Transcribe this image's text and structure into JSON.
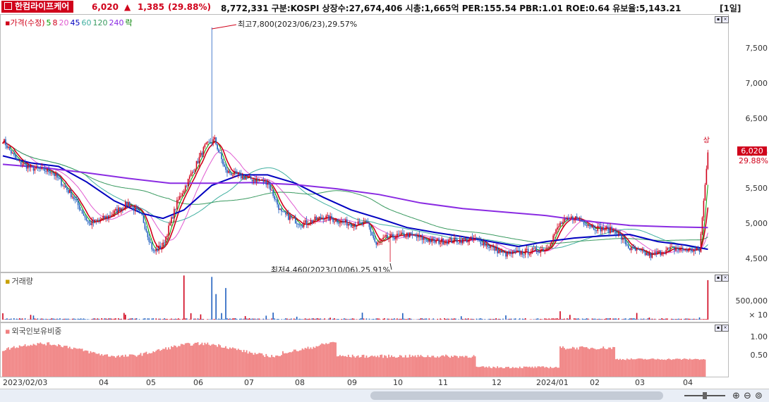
{
  "header": {
    "name": "한컴라이프케어",
    "price": "6,020",
    "arrow": "▲",
    "change": "1,385",
    "pct": "(29.88%)",
    "info": "8,772,331  구분:KOSPI  상장수:27,674,406  시총:1,665억  PER:155.54  PBR:1.01  ROE:0.64  유보율:5,143.21",
    "period": "[1일]"
  },
  "colors": {
    "up": "#d0021b",
    "down": "#1f5fbf",
    "ma5": "#00a000",
    "ma8": "#d0021b",
    "ma20": "#e05ad0",
    "ma45": "#0000c0",
    "ma60": "#40b0a0",
    "ma120": "#3a9a60",
    "ma240": "#8a2be2",
    "foreign": "#f08080"
  },
  "chart_data": [
    {
      "type": "candlestick",
      "legend": [
        {
          "label": "가격(수정)",
          "color": "#d0021b"
        },
        {
          "label": "5",
          "color": "#00a000"
        },
        {
          "label": "8",
          "color": "#d0021b"
        },
        {
          "label": "20",
          "color": "#e05ad0"
        },
        {
          "label": "45",
          "color": "#0000c0"
        },
        {
          "label": "60",
          "color": "#40b0a0"
        },
        {
          "label": "120",
          "color": "#3a9a60"
        },
        {
          "label": "240",
          "color": "#8a2be2"
        },
        {
          "label": "락",
          "color": "#008000"
        }
      ],
      "y_ticks": [
        "7,500",
        "7,000",
        "6,500",
        "6,000",
        "5,500",
        "5,000",
        "4,500"
      ],
      "ylim": [
        4400,
        7900
      ],
      "x_ticks": [
        "2023/02/03",
        "04",
        "05",
        "06",
        "07",
        "08",
        "09",
        "10",
        "11",
        "12",
        "2024/01",
        "02",
        "03",
        "04"
      ],
      "annotations": {
        "high": "최고7,800(2023/06/23),29.57%",
        "low": "최저4,460(2023/10/06),25.91%",
        "limit_up": "상",
        "last_price": "6,020",
        "last_pct": "29.88%"
      },
      "approx_close_path": [
        [
          0,
          6200
        ],
        [
          10,
          5900
        ],
        [
          20,
          5800
        ],
        [
          35,
          5750
        ],
        [
          50,
          5400
        ],
        [
          62,
          5000
        ],
        [
          75,
          5100
        ],
        [
          90,
          5300
        ],
        [
          100,
          5100
        ],
        [
          108,
          4600
        ],
        [
          115,
          4700
        ],
        [
          125,
          5300
        ],
        [
          135,
          5700
        ],
        [
          145,
          6100
        ],
        [
          152,
          6200
        ],
        [
          160,
          5750
        ],
        [
          175,
          5650
        ],
        [
          190,
          5600
        ],
        [
          200,
          5150
        ],
        [
          215,
          5000
        ],
        [
          230,
          5100
        ],
        [
          250,
          5000
        ],
        [
          262,
          5000
        ],
        [
          268,
          4700
        ],
        [
          275,
          4800
        ],
        [
          290,
          4850
        ],
        [
          310,
          4750
        ],
        [
          340,
          4780
        ],
        [
          360,
          4570
        ],
        [
          375,
          4600
        ],
        [
          390,
          4650
        ],
        [
          400,
          5000
        ],
        [
          410,
          5100
        ],
        [
          425,
          4950
        ],
        [
          440,
          4900
        ],
        [
          450,
          4650
        ],
        [
          465,
          4550
        ],
        [
          480,
          4650
        ],
        [
          500,
          4620
        ],
        [
          506,
          6020
        ]
      ],
      "ma45_path": [
        [
          0,
          5970
        ],
        [
          20,
          5870
        ],
        [
          40,
          5820
        ],
        [
          60,
          5600
        ],
        [
          80,
          5330
        ],
        [
          100,
          5150
        ],
        [
          115,
          5080
        ],
        [
          130,
          5200
        ],
        [
          150,
          5550
        ],
        [
          170,
          5700
        ],
        [
          190,
          5700
        ],
        [
          210,
          5580
        ],
        [
          230,
          5380
        ],
        [
          250,
          5200
        ],
        [
          270,
          5080
        ],
        [
          290,
          4950
        ],
        [
          310,
          4880
        ],
        [
          330,
          4820
        ],
        [
          350,
          4750
        ],
        [
          370,
          4680
        ],
        [
          390,
          4750
        ],
        [
          410,
          4800
        ],
        [
          430,
          4830
        ],
        [
          450,
          4850
        ],
        [
          470,
          4750
        ],
        [
          490,
          4700
        ],
        [
          506,
          4640
        ]
      ],
      "ma240_path": [
        [
          0,
          5850
        ],
        [
          30,
          5800
        ],
        [
          60,
          5730
        ],
        [
          90,
          5650
        ],
        [
          120,
          5580
        ],
        [
          150,
          5580
        ],
        [
          180,
          5590
        ],
        [
          210,
          5560
        ],
        [
          240,
          5500
        ],
        [
          270,
          5420
        ],
        [
          300,
          5300
        ],
        [
          330,
          5220
        ],
        [
          360,
          5170
        ],
        [
          390,
          5120
        ],
        [
          420,
          5040
        ],
        [
          450,
          4980
        ],
        [
          480,
          4960
        ],
        [
          506,
          4950
        ]
      ]
    },
    {
      "type": "bar",
      "title": "거래량",
      "y_ticks": [
        "500,000",
        "× 10"
      ],
      "approx_spikes": [
        [
          130,
          0.95
        ],
        [
          150,
          0.92
        ],
        [
          153,
          0.55
        ],
        [
          160,
          0.68
        ],
        [
          400,
          0.18
        ],
        [
          506,
          0.85
        ]
      ]
    },
    {
      "type": "bar",
      "title": "외국인보유비중",
      "y_ticks": [
        "1.00",
        "0.50"
      ],
      "ylim": [
        0,
        1.25
      ]
    }
  ]
}
